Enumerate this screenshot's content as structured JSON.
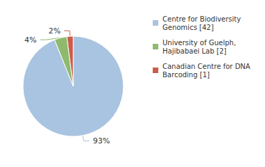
{
  "chart_data": {
    "type": "pie",
    "categories": [
      "Centre for Biodiversity\nGenomics [42]",
      "University of Guelph,\nHajibabaei Lab [2]",
      "Canadian Centre for DNA\nBarcoding [1]"
    ],
    "values": [
      93,
      4,
      2
    ],
    "value_labels": [
      "93%",
      "4%",
      "2%"
    ],
    "colors": [
      "#a8c4e0",
      "#8fba6e",
      "#cc5c4a"
    ],
    "data_labels": true,
    "legend": "upper right"
  }
}
